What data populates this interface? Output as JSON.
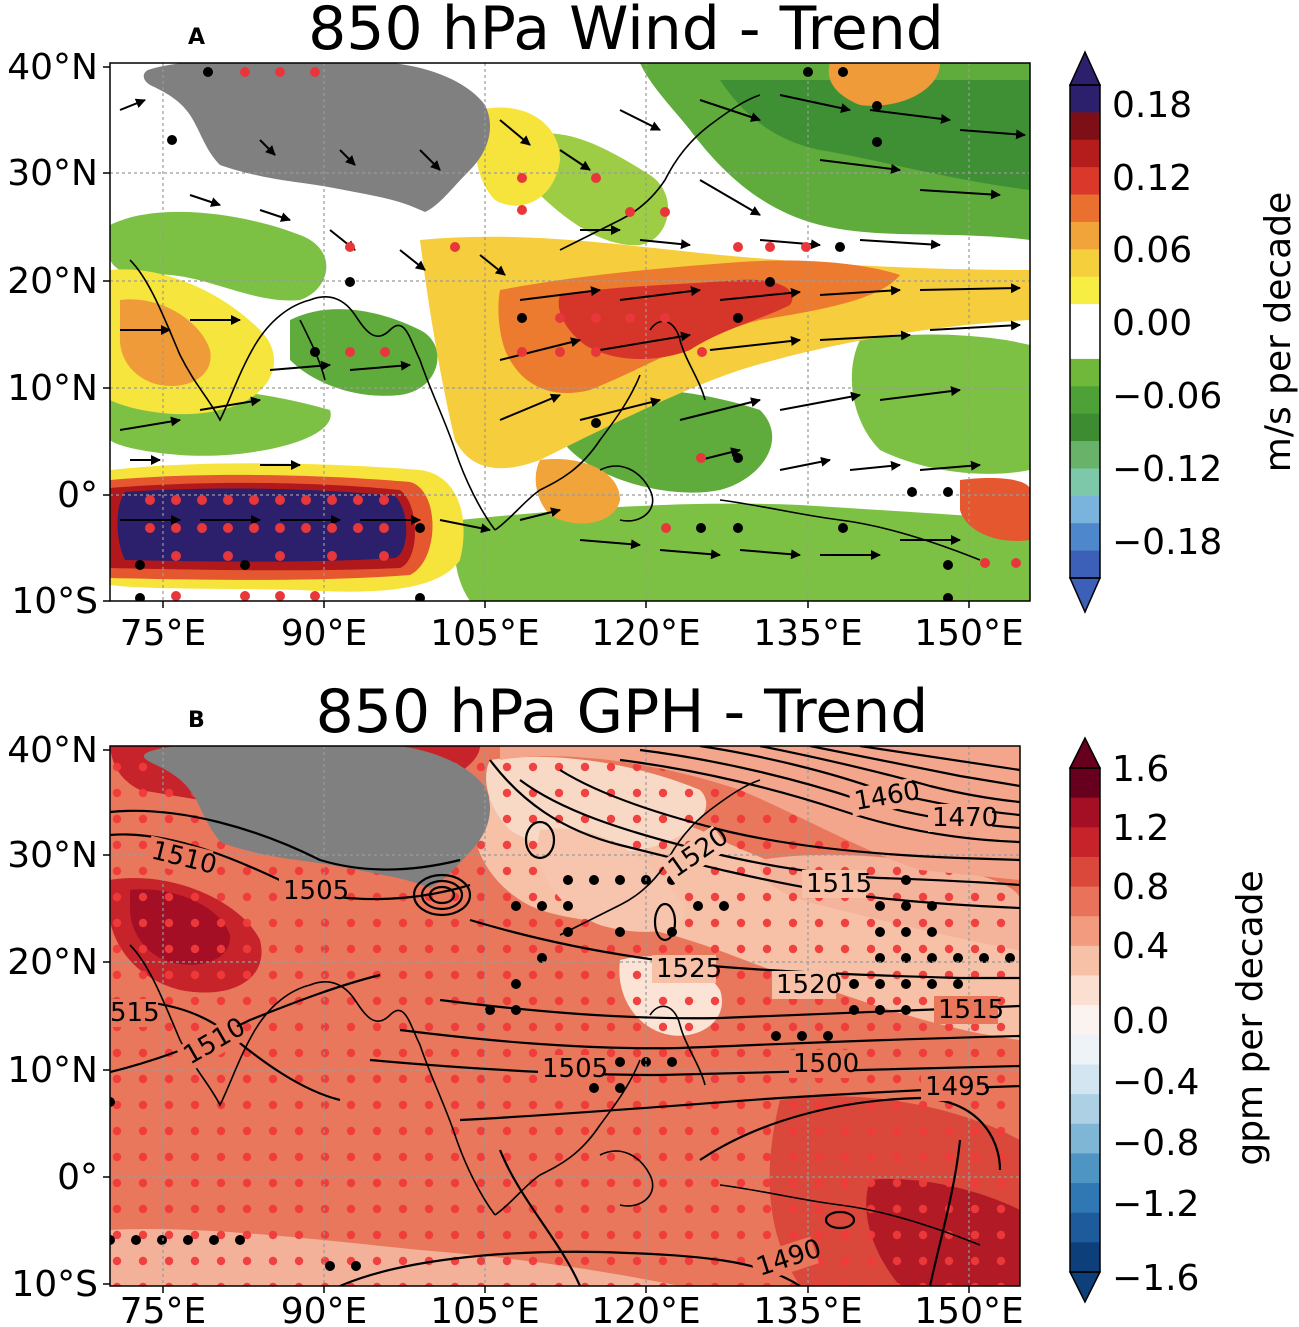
{
  "panels": [
    {
      "id": "A",
      "letter": "A",
      "title": "850 hPa Wind - Trend",
      "lat_ticks": [
        "40°N",
        "30°N",
        "20°N",
        "10°N",
        "0°",
        "10°S"
      ],
      "lon_ticks": [
        "75°E",
        "90°E",
        "105°E",
        "120°E",
        "135°E",
        "150°E"
      ],
      "colorbar": {
        "label": "m/s per decade",
        "ticks": [
          "0.18",
          "0.12",
          "0.06",
          "0.00",
          "−0.06",
          "−0.12",
          "−0.18"
        ],
        "colors_top_to_bottom": [
          "#2c1f6b",
          "#7d0f17",
          "#b51c1c",
          "#d9382a",
          "#e9702f",
          "#f1a43a",
          "#f6cf3c",
          "#f7ee43",
          "#ffffff",
          "#ffffff",
          "#6fb83a",
          "#4da136",
          "#3d8c31",
          "#68b26a",
          "#7cc8a8",
          "#7ab3dc",
          "#4f87cc",
          "#3c5fb8"
        ]
      }
    },
    {
      "id": "B",
      "letter": "B",
      "title": "850 hPa GPH - Trend",
      "lat_ticks": [
        "40°N",
        "30°N",
        "20°N",
        "10°N",
        "0°",
        "10°S"
      ],
      "lon_ticks": [
        "75°E",
        "90°E",
        "105°E",
        "120°E",
        "135°E",
        "150°E"
      ],
      "contour_labels": [
        {
          "text": "1510",
          "angle": 14
        },
        {
          "text": "1505",
          "angle": 0
        },
        {
          "text": "515",
          "angle": 0
        },
        {
          "text": "1510",
          "angle": -30
        },
        {
          "text": "1525",
          "angle": 0
        },
        {
          "text": "1520",
          "angle": 0
        },
        {
          "text": "1515",
          "angle": 0
        },
        {
          "text": "1515",
          "angle": 0
        },
        {
          "text": "1520",
          "angle": -35
        },
        {
          "text": "1505",
          "angle": 0
        },
        {
          "text": "1500",
          "angle": 0
        },
        {
          "text": "1495",
          "angle": 0
        },
        {
          "text": "1490",
          "angle": -18
        },
        {
          "text": "1460",
          "angle": -10
        },
        {
          "text": "1470",
          "angle": 0
        }
      ],
      "colorbar": {
        "label": "gpm per decade",
        "ticks": [
          "1.6",
          "1.2",
          "0.8",
          "0.4",
          "0.0",
          "−0.4",
          "−0.8",
          "−1.2",
          "−1.6"
        ],
        "colors_top_to_bottom": [
          "#67001f",
          "#a50f26",
          "#c7232b",
          "#d9483b",
          "#e8725a",
          "#f29b7f",
          "#f7c1a7",
          "#fbe0d1",
          "#fbf3ef",
          "#edf3f7",
          "#d2e5f0",
          "#add0e4",
          "#7fb6d6",
          "#4f95c4",
          "#2f78b4",
          "#1d5b9c",
          "#0d3f7a"
        ]
      }
    }
  ]
}
